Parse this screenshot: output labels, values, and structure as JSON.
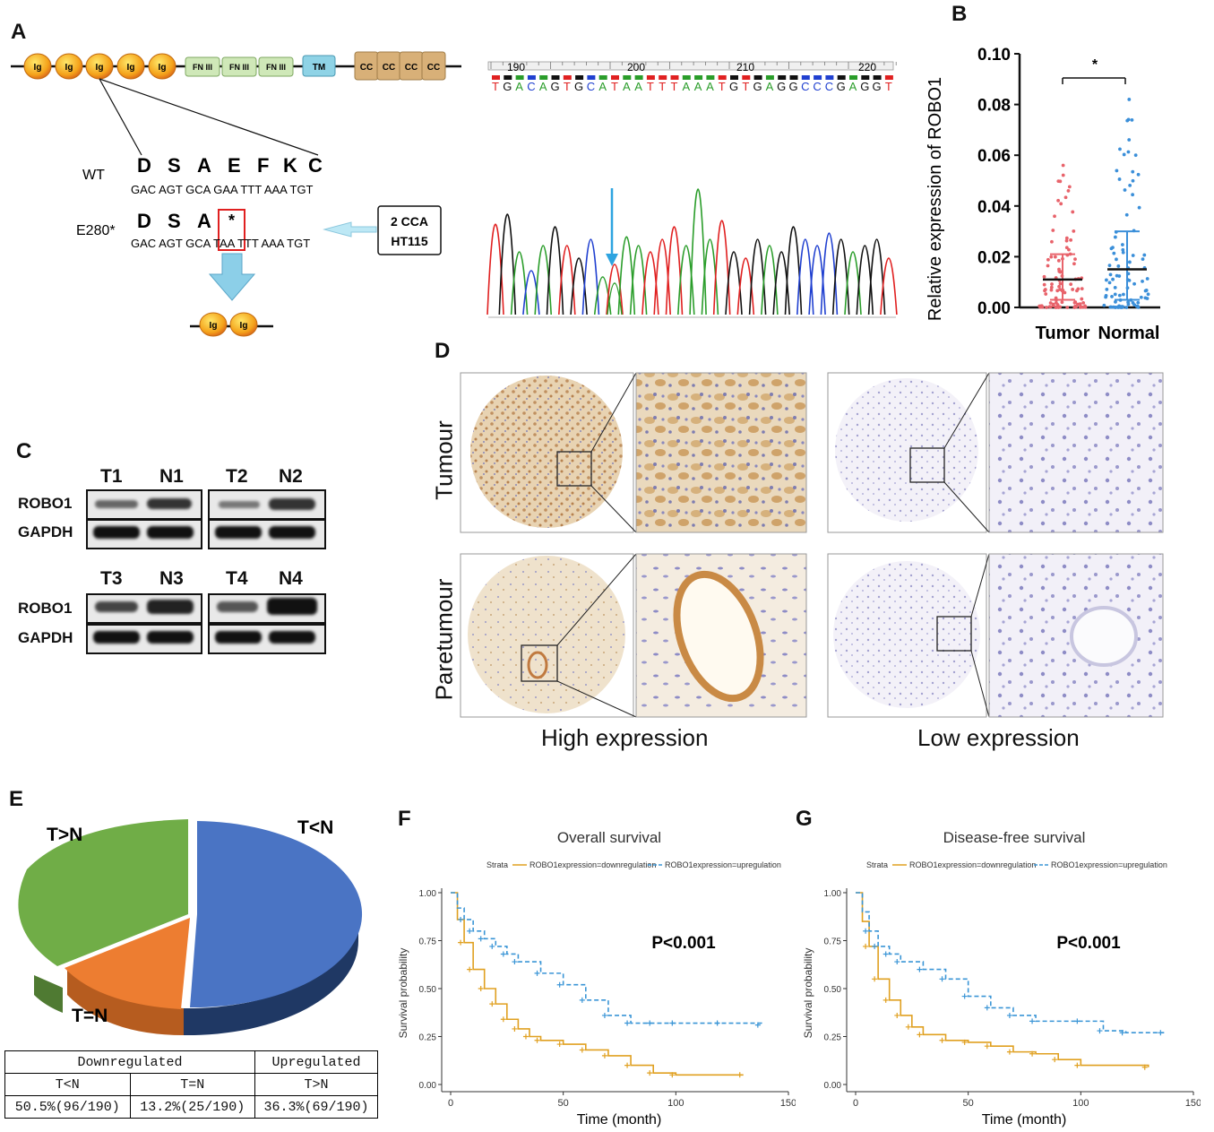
{
  "panel_labels": {
    "a": "A",
    "b": "B",
    "c": "C",
    "d": "D",
    "e": "E",
    "f": "F",
    "g": "G"
  },
  "panel_a": {
    "domains": [
      "Ig",
      "Ig",
      "Ig",
      "Ig",
      "Ig",
      "FN III",
      "FN III",
      "FN III",
      "TM",
      "CC",
      "CC",
      "CC",
      "CC"
    ],
    "wt_label": "WT",
    "wt_aa": [
      "D",
      "S",
      "A",
      "E",
      "F",
      "K",
      "C"
    ],
    "wt_codons": "GAC AGT GCA GAA TTT AAA TGT",
    "mut_label": "E280*",
    "mut_aa": [
      "D",
      "S",
      "A",
      "*"
    ],
    "mut_codons_pre": "GAC AGT GCA ",
    "mut_codon_stop": "TAA",
    "mut_codons_post": " TTT AAA TGT",
    "cell_lines": [
      "2 CCA",
      "HT115"
    ],
    "truncated_domains": [
      "Ig",
      "Ig"
    ],
    "seq_ticks": [
      "190",
      "200",
      "210",
      "220"
    ],
    "sequence": "TGACAGTGCATAATTTAAATGTGAGGCCCGAGGT"
  },
  "panel_b": {
    "chart_data": {
      "type": "scatter",
      "categories": [
        "Tumor",
        "Normal"
      ],
      "ylabel": "Relative expression of ROBO1",
      "ylim": [
        0,
        0.1
      ],
      "yticks": [
        "0.00",
        "0.02",
        "0.04",
        "0.06",
        "0.08",
        "0.10"
      ],
      "series": [
        {
          "name": "Tumor",
          "color": "#e8636b",
          "median": 0.011,
          "q1": 0.003,
          "q3": 0.021
        },
        {
          "name": "Normal",
          "color": "#3b8fd9",
          "median": 0.015,
          "q1": 0.003,
          "q3": 0.03
        }
      ],
      "significance": "*"
    }
  },
  "panel_c": {
    "blots": [
      {
        "lanes": [
          "T1",
          "N1"
        ]
      },
      {
        "lanes": [
          "T2",
          "N2"
        ]
      },
      {
        "lanes": [
          "T3",
          "N3"
        ]
      },
      {
        "lanes": [
          "T4",
          "N4"
        ]
      }
    ],
    "rows": [
      "ROBO1",
      "GAPDH"
    ]
  },
  "panel_d": {
    "row_labels": [
      "Tumour",
      "Paretumour"
    ],
    "col_labels": [
      "High expression",
      "Low expression"
    ]
  },
  "panel_e": {
    "chart_data": {
      "type": "pie",
      "labels": [
        "T<N",
        "T=N",
        "T>N"
      ],
      "values": [
        50.5,
        13.2,
        36.3
      ],
      "colors": [
        "#4a74c4",
        "#ed7d31",
        "#70ad47"
      ]
    },
    "table": {
      "head1": [
        "Downregulated",
        "Upregulated"
      ],
      "head2": [
        "T<N",
        "T=N",
        "T>N"
      ],
      "values": [
        "50.5%(96/190)",
        "13.2%(25/190)",
        "36.3%(69/190)"
      ]
    }
  },
  "panel_f": {
    "chart_data": {
      "type": "line",
      "title": "Overall survival",
      "legend_title": "Strata",
      "legend": [
        "ROBO1expression=downregulation",
        "ROBO1expression=upregulation"
      ],
      "xlabel": "Time (month)",
      "ylabel": "Survival probability",
      "xlim": [
        0,
        150
      ],
      "ylim": [
        0,
        1
      ],
      "xticks": [
        "0",
        "50",
        "100",
        "150"
      ],
      "yticks": [
        "0.00",
        "0.25",
        "0.50",
        "0.75",
        "1.00"
      ],
      "pvalue": "P<0.001",
      "series": [
        {
          "name": "downregulation",
          "color": "#e0a020",
          "x": [
            0,
            3,
            6,
            10,
            15,
            20,
            25,
            30,
            35,
            40,
            50,
            60,
            70,
            80,
            90,
            100,
            130
          ],
          "y": [
            1,
            0.86,
            0.74,
            0.6,
            0.5,
            0.42,
            0.34,
            0.29,
            0.25,
            0.23,
            0.21,
            0.18,
            0.15,
            0.1,
            0.06,
            0.05,
            0.05
          ]
        },
        {
          "name": "upregulation",
          "color": "#3a95d6",
          "x": [
            0,
            3,
            6,
            10,
            15,
            20,
            25,
            30,
            40,
            50,
            60,
            70,
            80,
            90,
            100,
            120,
            138
          ],
          "y": [
            1,
            0.92,
            0.86,
            0.8,
            0.76,
            0.72,
            0.68,
            0.64,
            0.58,
            0.52,
            0.44,
            0.36,
            0.32,
            0.32,
            0.32,
            0.32,
            0.31
          ]
        }
      ]
    }
  },
  "panel_g": {
    "chart_data": {
      "type": "line",
      "title": "Disease-free survival",
      "legend_title": "Strata",
      "legend": [
        "ROBO1expression=downregulation",
        "ROBO1expression=upregulation"
      ],
      "xlabel": "Time (month)",
      "ylabel": "Survival probability",
      "xlim": [
        0,
        150
      ],
      "ylim": [
        0,
        1
      ],
      "xticks": [
        "0",
        "50",
        "100",
        "150"
      ],
      "yticks": [
        "0.00",
        "0.25",
        "0.50",
        "0.75",
        "1.00"
      ],
      "pvalue": "P<0.001",
      "series": [
        {
          "name": "downregulation",
          "color": "#e0a020",
          "x": [
            0,
            3,
            6,
            10,
            15,
            20,
            25,
            30,
            40,
            50,
            60,
            70,
            80,
            90,
            100,
            130
          ],
          "y": [
            1,
            0.85,
            0.72,
            0.55,
            0.44,
            0.36,
            0.3,
            0.26,
            0.23,
            0.22,
            0.2,
            0.17,
            0.16,
            0.13,
            0.1,
            0.09
          ]
        },
        {
          "name": "upregulation",
          "color": "#3a95d6",
          "x": [
            0,
            3,
            6,
            10,
            15,
            20,
            30,
            40,
            50,
            60,
            70,
            80,
            100,
            110,
            120,
            137
          ],
          "y": [
            1,
            0.9,
            0.8,
            0.72,
            0.68,
            0.64,
            0.6,
            0.55,
            0.46,
            0.4,
            0.36,
            0.33,
            0.33,
            0.28,
            0.27,
            0.27
          ]
        }
      ]
    }
  }
}
